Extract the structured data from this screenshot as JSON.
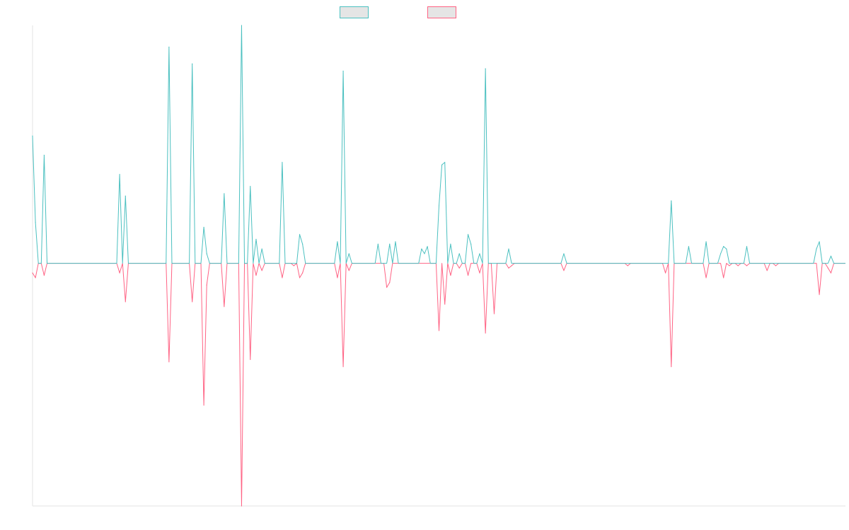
{
  "chart_data": {
    "type": "line",
    "title": "",
    "xlabel": "",
    "ylabel": "",
    "x_count": 281,
    "x_range": [
      0,
      280
    ],
    "ylim": [
      -1.01,
      0.99
    ],
    "grid": false,
    "legend_position": "top",
    "default_value": 0,
    "series": [
      {
        "name": "",
        "color": "#4bc0c0",
        "sparse_values": [
          [
            0,
            0.53
          ],
          [
            1,
            0.17
          ],
          [
            4,
            0.45
          ],
          [
            30,
            0.37
          ],
          [
            32,
            0.28
          ],
          [
            47,
            0.9
          ],
          [
            55,
            0.83
          ],
          [
            59,
            0.15
          ],
          [
            60,
            0.04
          ],
          [
            66,
            0.29
          ],
          [
            72,
            0.99
          ],
          [
            75,
            0.32
          ],
          [
            77,
            0.1
          ],
          [
            79,
            0.06
          ],
          [
            86,
            0.42
          ],
          [
            92,
            0.12
          ],
          [
            93,
            0.08
          ],
          [
            105,
            0.09
          ],
          [
            107,
            0.8
          ],
          [
            109,
            0.04
          ],
          [
            119,
            0.08
          ],
          [
            123,
            0.08
          ],
          [
            125,
            0.09
          ],
          [
            134,
            0.06
          ],
          [
            135,
            0.04
          ],
          [
            136,
            0.07
          ],
          [
            140,
            0.24
          ],
          [
            141,
            0.41
          ],
          [
            142,
            0.42
          ],
          [
            144,
            0.08
          ],
          [
            147,
            0.04
          ],
          [
            150,
            0.12
          ],
          [
            151,
            0.08
          ],
          [
            154,
            0.04
          ],
          [
            156,
            0.81
          ],
          [
            164,
            0.06
          ],
          [
            183,
            0.04
          ],
          [
            220,
            0.26
          ],
          [
            226,
            0.07
          ],
          [
            232,
            0.09
          ],
          [
            237,
            0.04
          ],
          [
            238,
            0.07
          ],
          [
            239,
            0.06
          ],
          [
            246,
            0.07
          ],
          [
            270,
            0.06
          ],
          [
            271,
            0.09
          ],
          [
            275,
            0.03
          ]
        ]
      },
      {
        "name": "",
        "color": "#ff6384",
        "sparse_values": [
          [
            0,
            -0.04
          ],
          [
            1,
            -0.06
          ],
          [
            4,
            -0.05
          ],
          [
            30,
            -0.04
          ],
          [
            32,
            -0.16
          ],
          [
            47,
            -0.41
          ],
          [
            55,
            -0.16
          ],
          [
            59,
            -0.59
          ],
          [
            60,
            -0.09
          ],
          [
            66,
            -0.18
          ],
          [
            72,
            -1.01
          ],
          [
            75,
            -0.4
          ],
          [
            77,
            -0.05
          ],
          [
            79,
            -0.03
          ],
          [
            86,
            -0.06
          ],
          [
            90,
            -0.01
          ],
          [
            92,
            -0.06
          ],
          [
            93,
            -0.04
          ],
          [
            105,
            -0.06
          ],
          [
            107,
            -0.43
          ],
          [
            109,
            -0.03
          ],
          [
            122,
            -0.1
          ],
          [
            123,
            -0.08
          ],
          [
            140,
            -0.28
          ],
          [
            142,
            -0.17
          ],
          [
            144,
            -0.05
          ],
          [
            147,
            -0.02
          ],
          [
            150,
            -0.05
          ],
          [
            154,
            -0.04
          ],
          [
            156,
            -0.29
          ],
          [
            159,
            -0.21
          ],
          [
            164,
            -0.02
          ],
          [
            165,
            -0.01
          ],
          [
            183,
            -0.03
          ],
          [
            205,
            -0.01
          ],
          [
            218,
            -0.04
          ],
          [
            220,
            -0.43
          ],
          [
            232,
            -0.06
          ],
          [
            238,
            -0.06
          ],
          [
            240,
            -0.01
          ],
          [
            243,
            -0.01
          ],
          [
            246,
            -0.01
          ],
          [
            253,
            -0.03
          ],
          [
            256,
            -0.01
          ],
          [
            271,
            -0.13
          ],
          [
            274,
            -0.02
          ],
          [
            275,
            -0.04
          ]
        ]
      }
    ]
  }
}
